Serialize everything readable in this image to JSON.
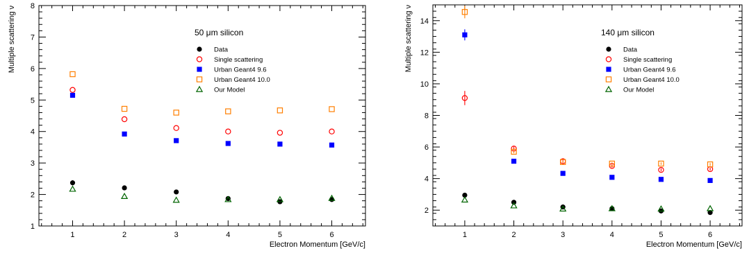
{
  "chart_data": [
    {
      "type": "scatter",
      "annotation": "50 μm silicon",
      "xlabel": "Electron Momentum [GeV/c]",
      "ylabel": "Multiple scattering ν",
      "xlim": [
        0.35,
        6.65
      ],
      "ylim": [
        1,
        8
      ],
      "xticks": [
        1,
        2,
        3,
        4,
        5,
        6
      ],
      "yticks": [
        1,
        2,
        3,
        4,
        5,
        6,
        7,
        8
      ],
      "legend_position": "upper-right",
      "series": [
        {
          "name": "Data",
          "marker": "filled-circle",
          "color": "#000000",
          "x": [
            1,
            2,
            3,
            4,
            5,
            6
          ],
          "y": [
            2.37,
            2.21,
            2.08,
            1.87,
            1.77,
            1.84
          ],
          "err": [
            0.08,
            0.05,
            0.03,
            0.03,
            0.03,
            0.04
          ]
        },
        {
          "name": "Single scattering",
          "marker": "open-circle",
          "color": "#ff0000",
          "x": [
            1,
            2,
            3,
            4,
            5,
            6
          ],
          "y": [
            5.32,
            4.39,
            4.11,
            4.0,
            3.96,
            4.0
          ]
        },
        {
          "name": "Urban Geant4 9.6",
          "marker": "filled-square",
          "color": "#0000ff",
          "x": [
            1,
            2,
            3,
            4,
            5,
            6
          ],
          "y": [
            5.15,
            3.92,
            3.71,
            3.62,
            3.6,
            3.57
          ]
        },
        {
          "name": "Urban Geant4 10.0",
          "marker": "open-square",
          "color": "#ff7f00",
          "x": [
            1,
            2,
            3,
            4,
            5,
            6
          ],
          "y": [
            5.82,
            4.72,
            4.6,
            4.64,
            4.67,
            4.71
          ]
        },
        {
          "name": "Our Model",
          "marker": "open-triangle",
          "color": "#006400",
          "x": [
            1,
            2,
            3,
            4,
            5,
            6
          ],
          "y": [
            2.17,
            1.94,
            1.82,
            1.84,
            1.84,
            1.88
          ]
        }
      ]
    },
    {
      "type": "scatter",
      "annotation": "140 μm silicon",
      "xlabel": "Electron Momentum [GeV/c]",
      "ylabel": "Multiple scattering ν",
      "xlim": [
        0.35,
        6.65
      ],
      "ylim": [
        1.0,
        15.0
      ],
      "xticks": [
        1,
        2,
        3,
        4,
        5,
        6
      ],
      "yticks": [
        2,
        4,
        6,
        8,
        10,
        12,
        14
      ],
      "legend_position": "upper-right",
      "series": [
        {
          "name": "Data",
          "marker": "filled-circle",
          "color": "#000000",
          "x": [
            1,
            2,
            3,
            4,
            5,
            6
          ],
          "y": [
            2.95,
            2.5,
            2.2,
            2.1,
            1.95,
            1.85
          ],
          "err": [
            0.08,
            0.06,
            0.05,
            0.05,
            0.05,
            0.05
          ]
        },
        {
          "name": "Single scattering",
          "marker": "open-circle",
          "color": "#ff0000",
          "x": [
            1,
            2,
            3,
            4,
            5,
            6
          ],
          "y": [
            9.1,
            5.9,
            5.1,
            4.8,
            4.55,
            4.6
          ],
          "err": [
            0.45,
            0.12,
            0.1,
            0.1,
            0.1,
            0.1
          ]
        },
        {
          "name": "Urban Geant4 9.6",
          "marker": "filled-square",
          "color": "#0000ff",
          "x": [
            1,
            2,
            3,
            4,
            5,
            6
          ],
          "y": [
            13.1,
            5.1,
            4.33,
            4.08,
            3.95,
            3.88
          ],
          "err": [
            0.35,
            0.08,
            0.06,
            0.06,
            0.06,
            0.06
          ]
        },
        {
          "name": "Urban Geant4 10.0",
          "marker": "open-square",
          "color": "#ff7f00",
          "x": [
            1,
            2,
            3,
            4,
            5,
            6
          ],
          "y": [
            14.55,
            5.7,
            5.05,
            4.95,
            4.95,
            4.9
          ],
          "err": [
            0.4,
            0.1,
            0.08,
            0.08,
            0.08,
            0.08
          ]
        },
        {
          "name": "Our Model",
          "marker": "open-triangle",
          "color": "#006400",
          "x": [
            1,
            2,
            3,
            4,
            5,
            6
          ],
          "y": [
            2.65,
            2.28,
            2.08,
            2.1,
            2.08,
            2.1
          ]
        }
      ]
    }
  ]
}
